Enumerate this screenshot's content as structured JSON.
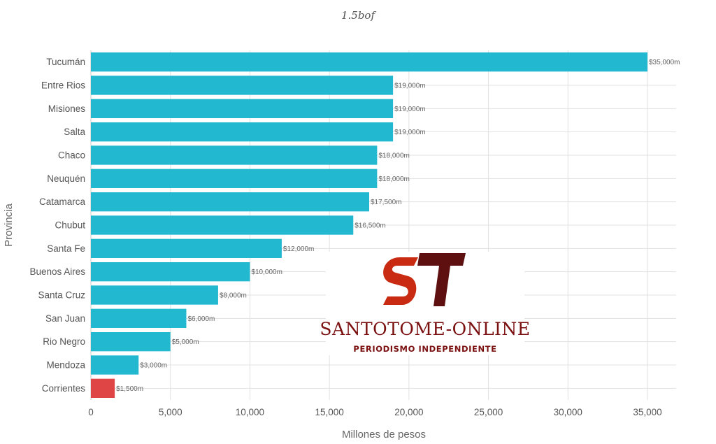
{
  "chart_data": {
    "type": "bar",
    "orientation": "horizontal",
    "title": "1.5bof",
    "xlabel": "Millones de pesos",
    "ylabel": "Provincia",
    "xlim": [
      0,
      37000
    ],
    "xticks": [
      0,
      5000,
      10000,
      15000,
      20000,
      25000,
      30000,
      35000
    ],
    "xtick_labels": [
      "0",
      "5,000",
      "10,000",
      "15,000",
      "20,000",
      "25,000",
      "30,000",
      "35,000"
    ],
    "grid": true,
    "categories": [
      "Tucumán",
      "Entre Rios",
      "Misiones",
      "Salta",
      "Chaco",
      "Neuquén",
      "Catamarca",
      "Chubut",
      "Santa Fe",
      "Buenos Aires",
      "Santa Cruz",
      "San Juan",
      "Rio Negro",
      "Mendoza",
      "Corrientes"
    ],
    "values": [
      35000,
      19000,
      19000,
      19000,
      18000,
      18000,
      17500,
      16500,
      12000,
      10000,
      8000,
      6000,
      5000,
      3000,
      1500
    ],
    "data_labels": [
      "$35,000m",
      "$19,000m",
      "$19,000m",
      "$19,000m",
      "$18,000m",
      "$18,000m",
      "$17,500m",
      "$16,500m",
      "$12,000m",
      "$10,000m",
      "$8,000m",
      "$6,000m",
      "$5,000m",
      "$3,000m",
      "$1,500m"
    ],
    "bar_color": "#22b8cf",
    "highlight": {
      "category": "Corrientes",
      "color": "#e04545"
    }
  },
  "watermark": {
    "name": "SANTOTOME-ONLINE",
    "tagline": "PERIODISMO INDEPENDIENTE",
    "monogram": "ST"
  }
}
